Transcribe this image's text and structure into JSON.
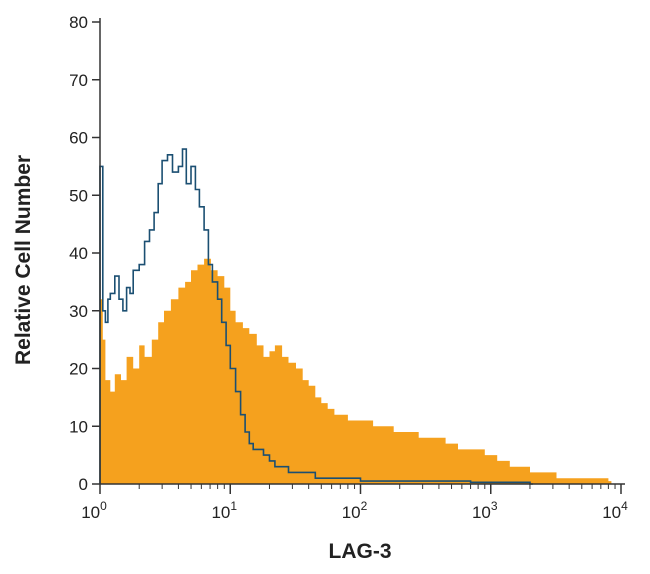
{
  "chart_data": {
    "type": "histogram",
    "xlabel": "LAG-3",
    "ylabel": "Relative Cell Number",
    "x_scale": "log",
    "xlim": [
      1,
      10000
    ],
    "ylim": [
      0,
      80
    ],
    "x_ticks": [
      {
        "value": 1,
        "base": "10",
        "exp": "0"
      },
      {
        "value": 10,
        "base": "10",
        "exp": "1"
      },
      {
        "value": 100,
        "base": "10",
        "exp": "2"
      },
      {
        "value": 1000,
        "base": "10",
        "exp": "3"
      },
      {
        "value": 10000,
        "base": "10",
        "exp": "4"
      }
    ],
    "y_ticks": [
      "0",
      "10",
      "20",
      "30",
      "40",
      "50",
      "60",
      "70",
      "80"
    ],
    "grid": false,
    "colors": {
      "filled": "#f5a11e",
      "outline": "#1b4f72",
      "axis": "#333333"
    },
    "series": [
      {
        "style": "filled",
        "x": [
          1.0,
          1.05,
          1.1,
          1.2,
          1.3,
          1.45,
          1.6,
          1.8,
          2.0,
          2.2,
          2.5,
          2.8,
          3.1,
          3.5,
          4.0,
          4.5,
          5.0,
          5.6,
          6.3,
          7.1,
          8.0,
          9.0,
          10,
          11,
          12.5,
          14,
          16,
          18,
          20,
          22,
          25,
          28,
          32,
          36,
          40,
          45,
          50,
          56,
          63,
          71,
          80,
          90,
          100,
          112,
          125,
          140,
          160,
          180,
          200,
          224,
          250,
          280,
          320,
          360,
          400,
          450,
          500,
          560,
          630,
          710,
          800,
          900,
          1000,
          1120,
          1250,
          1400,
          1600,
          1800,
          2000,
          2240,
          2500,
          2800,
          3200,
          3600,
          4000,
          4500,
          5000,
          5600,
          6300,
          7100,
          8000
        ],
        "y": [
          32,
          25,
          18,
          16,
          19,
          18,
          22,
          20,
          24,
          22,
          25,
          28,
          30,
          32,
          34,
          35,
          37,
          38,
          39,
          37,
          36,
          34,
          30,
          28,
          27,
          26,
          24,
          22,
          23,
          24,
          22,
          21,
          20,
          18,
          17,
          15,
          14,
          13,
          12,
          12,
          11,
          11,
          11,
          11,
          10,
          10,
          10,
          9,
          9,
          9,
          9,
          8,
          8,
          8,
          8,
          7,
          7,
          6,
          6,
          6,
          6,
          5,
          5,
          4,
          4,
          3,
          3,
          3,
          2,
          2,
          2,
          2,
          1,
          1,
          1,
          1,
          1,
          1,
          1,
          1,
          0.5
        ]
      },
      {
        "style": "outline",
        "x": [
          1.0,
          1.05,
          1.1,
          1.15,
          1.2,
          1.3,
          1.4,
          1.5,
          1.6,
          1.7,
          1.8,
          2.0,
          2.2,
          2.4,
          2.6,
          2.8,
          3.0,
          3.3,
          3.6,
          4.0,
          4.3,
          4.6,
          5.0,
          5.4,
          5.8,
          6.3,
          6.8,
          7.3,
          8.0,
          8.6,
          9.3,
          10,
          11,
          12,
          13,
          14,
          15,
          16,
          18,
          20,
          22,
          25,
          28,
          32,
          36,
          40,
          45,
          50,
          56,
          63,
          71,
          80,
          90,
          100,
          125,
          160,
          200,
          250,
          300,
          400,
          500,
          700,
          1000,
          1300,
          1600,
          2000
        ],
        "y": [
          55,
          30,
          28,
          32,
          33,
          36,
          32,
          30,
          34,
          33,
          37,
          38,
          42,
          44,
          47,
          52,
          56,
          57,
          54,
          55,
          58,
          52,
          55,
          51,
          48,
          44,
          38,
          35,
          32,
          28,
          24,
          20,
          16,
          12,
          9,
          7,
          6,
          6,
          5,
          4,
          3,
          3,
          2,
          2,
          2,
          2,
          1,
          1,
          1,
          1,
          1,
          1,
          1,
          0.5,
          0.5,
          0.5,
          0.5,
          0.5,
          0.5,
          0.5,
          0.5,
          0.3,
          0.3,
          0.3,
          0.3,
          0
        ]
      }
    ]
  }
}
